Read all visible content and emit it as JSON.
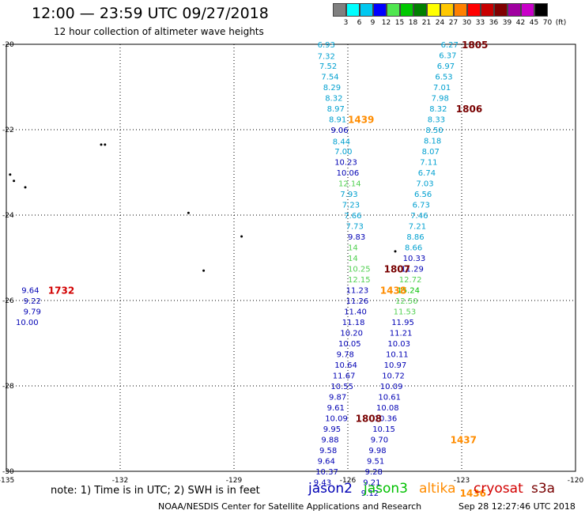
{
  "title": "12:00 — 23:59 UTC 09/27/2018",
  "subtitle": "12 hour collection of altimeter wave heights",
  "colorbar": {
    "labels": [
      "3",
      "6",
      "9",
      "12",
      "15",
      "18",
      "21",
      "24",
      "27",
      "30",
      "33",
      "36",
      "39",
      "42",
      "45",
      "70",
      "(ft)"
    ],
    "colors": [
      "#808080",
      "#00ffff",
      "#00c8f0",
      "#0000ff",
      "#50e650",
      "#00c800",
      "#008000",
      "#ffff00",
      "#ffc800",
      "#ff8000",
      "#ff0000",
      "#c80000",
      "#800000",
      "#a000a0",
      "#c800c8",
      "#000000"
    ]
  },
  "colors": {
    "jason2": "#0000b4",
    "jason3": "#00c000",
    "altika": "#ff8c00",
    "cryosat": "#d20000",
    "s3a": "#780000",
    "cyan": "#00a0d0",
    "green": "#50d050"
  },
  "axes": {
    "lat_labels": [
      "-20",
      "-22",
      "-24",
      "-26",
      "-28",
      "-30"
    ],
    "lon_labels": [
      "-135",
      "-132",
      "-129",
      "-126",
      "-123",
      "-120"
    ]
  },
  "chart_data": {
    "type": "scatter",
    "title": "12:00 — 23:59 UTC 09/27/2018",
    "xlabel": "",
    "ylabel": "",
    "xlim": [
      -135,
      -120
    ],
    "ylim": [
      -30,
      -20
    ],
    "grid": true,
    "x_ticks": [
      -135,
      -132,
      -129,
      -126,
      -123,
      -120
    ],
    "y_ticks": [
      -20,
      -22,
      -24,
      -26,
      -28,
      -30
    ],
    "series": [
      {
        "name": "jason2",
        "color": "#0000b4"
      },
      {
        "name": "jason3",
        "color": "#00c000"
      },
      {
        "name": "altika",
        "color": "#ff8c00"
      },
      {
        "name": "cryosat",
        "color": "#d20000"
      },
      {
        "name": "s3a",
        "color": "#780000"
      }
    ],
    "labels": [
      {
        "text": "6.93",
        "lon": -126.8,
        "lat": -20.0,
        "c": "cyan"
      },
      {
        "text": "7.32",
        "lon": -126.8,
        "lat": -20.27,
        "c": "cyan"
      },
      {
        "text": "7.52",
        "lon": -126.75,
        "lat": -20.5,
        "c": "cyan"
      },
      {
        "text": "7.54",
        "lon": -126.7,
        "lat": -20.75,
        "c": "cyan"
      },
      {
        "text": "8.29",
        "lon": -126.65,
        "lat": -21.0,
        "c": "cyan"
      },
      {
        "text": "8.32",
        "lon": -126.6,
        "lat": -21.25,
        "c": "cyan"
      },
      {
        "text": "8.97",
        "lon": -126.55,
        "lat": -21.5,
        "c": "cyan"
      },
      {
        "text": "8.91",
        "lon": -126.5,
        "lat": -21.75,
        "c": "cyan"
      },
      {
        "text": "9.06",
        "lon": -126.45,
        "lat": -22.0,
        "c": "jason2"
      },
      {
        "text": "8.44",
        "lon": -126.4,
        "lat": -22.27,
        "c": "cyan"
      },
      {
        "text": "7.00",
        "lon": -126.35,
        "lat": -22.5,
        "c": "cyan"
      },
      {
        "text": "10.23",
        "lon": -126.35,
        "lat": -22.75,
        "c": "jason2"
      },
      {
        "text": "10.06",
        "lon": -126.3,
        "lat": -23.0,
        "c": "jason2"
      },
      {
        "text": "12.14",
        "lon": -126.25,
        "lat": -23.25,
        "c": "green"
      },
      {
        "text": "7.93",
        "lon": -126.2,
        "lat": -23.5,
        "c": "cyan"
      },
      {
        "text": "7.23",
        "lon": -126.15,
        "lat": -23.75,
        "c": "cyan"
      },
      {
        "text": "7.66",
        "lon": -126.1,
        "lat": -24.0,
        "c": "cyan"
      },
      {
        "text": "7.73",
        "lon": -126.05,
        "lat": -24.25,
        "c": "cyan"
      },
      {
        "text": "9.83",
        "lon": -126.0,
        "lat": -24.5,
        "c": "jason2"
      },
      {
        "text": "14",
        "lon": -126.0,
        "lat": -24.75,
        "c": "green"
      },
      {
        "text": "14",
        "lon": -126.0,
        "lat": -25.0,
        "c": "green"
      },
      {
        "text": "10.25",
        "lon": -126.0,
        "lat": -25.25,
        "c": "green"
      },
      {
        "text": "12.15",
        "lon": -126.0,
        "lat": -25.5,
        "c": "green"
      },
      {
        "text": "11.23",
        "lon": -126.05,
        "lat": -25.75,
        "c": "jason2"
      },
      {
        "text": "11.26",
        "lon": -126.05,
        "lat": -26.0,
        "c": "jason2"
      },
      {
        "text": "11.40",
        "lon": -126.1,
        "lat": -26.25,
        "c": "jason2"
      },
      {
        "text": "11.18",
        "lon": -126.15,
        "lat": -26.5,
        "c": "jason2"
      },
      {
        "text": "10.20",
        "lon": -126.2,
        "lat": -26.75,
        "c": "jason2"
      },
      {
        "text": "10.05",
        "lon": -126.25,
        "lat": -27.0,
        "c": "jason2"
      },
      {
        "text": "9.78",
        "lon": -126.3,
        "lat": -27.25,
        "c": "jason2"
      },
      {
        "text": "10.64",
        "lon": -126.35,
        "lat": -27.5,
        "c": "jason2"
      },
      {
        "text": "11.67",
        "lon": -126.4,
        "lat": -27.75,
        "c": "jason2"
      },
      {
        "text": "10.55",
        "lon": -126.45,
        "lat": -28.0,
        "c": "jason2"
      },
      {
        "text": "9.87",
        "lon": -126.5,
        "lat": -28.25,
        "c": "jason2"
      },
      {
        "text": "9.61",
        "lon": -126.55,
        "lat": -28.5,
        "c": "jason2"
      },
      {
        "text": "10.09",
        "lon": -126.6,
        "lat": -28.75,
        "c": "jason2"
      },
      {
        "text": "9.95",
        "lon": -126.65,
        "lat": -29.0,
        "c": "jason2"
      },
      {
        "text": "9.88",
        "lon": -126.7,
        "lat": -29.25,
        "c": "jason2"
      },
      {
        "text": "9.58",
        "lon": -126.75,
        "lat": -29.5,
        "c": "jason2"
      },
      {
        "text": "9.64",
        "lon": -126.8,
        "lat": -29.75,
        "c": "jason2"
      },
      {
        "text": "10.37",
        "lon": -126.85,
        "lat": -30.0,
        "c": "jason2"
      },
      {
        "text": "9.43",
        "lon": -126.9,
        "lat": -30.25,
        "c": "jason2"
      },
      {
        "text": "6.27",
        "lon": -123.55,
        "lat": -20.0,
        "c": "cyan"
      },
      {
        "text": "6.37",
        "lon": -123.6,
        "lat": -20.25,
        "c": "cyan"
      },
      {
        "text": "6.97",
        "lon": -123.65,
        "lat": -20.5,
        "c": "cyan"
      },
      {
        "text": "6.53",
        "lon": -123.7,
        "lat": -20.75,
        "c": "cyan"
      },
      {
        "text": "7.01",
        "lon": -123.75,
        "lat": -21.0,
        "c": "cyan"
      },
      {
        "text": "7.98",
        "lon": -123.8,
        "lat": -21.25,
        "c": "cyan"
      },
      {
        "text": "8.32",
        "lon": -123.85,
        "lat": -21.5,
        "c": "cyan"
      },
      {
        "text": "8.33",
        "lon": -123.9,
        "lat": -21.75,
        "c": "cyan"
      },
      {
        "text": "8.50",
        "lon": -123.95,
        "lat": -22.0,
        "c": "cyan"
      },
      {
        "text": "8.18",
        "lon": -124.0,
        "lat": -22.25,
        "c": "cyan"
      },
      {
        "text": "8.07",
        "lon": -124.05,
        "lat": -22.5,
        "c": "cyan"
      },
      {
        "text": "7.11",
        "lon": -124.1,
        "lat": -22.75,
        "c": "cyan"
      },
      {
        "text": "6.74",
        "lon": -124.15,
        "lat": -23.0,
        "c": "cyan"
      },
      {
        "text": "7.03",
        "lon": -124.2,
        "lat": -23.25,
        "c": "cyan"
      },
      {
        "text": "6.56",
        "lon": -124.25,
        "lat": -23.5,
        "c": "cyan"
      },
      {
        "text": "6.73",
        "lon": -124.3,
        "lat": -23.75,
        "c": "cyan"
      },
      {
        "text": "7.46",
        "lon": -124.35,
        "lat": -24.0,
        "c": "cyan"
      },
      {
        "text": "7.21",
        "lon": -124.4,
        "lat": -24.25,
        "c": "cyan"
      },
      {
        "text": "8.86",
        "lon": -124.45,
        "lat": -24.5,
        "c": "cyan"
      },
      {
        "text": "8.66",
        "lon": -124.5,
        "lat": -24.75,
        "c": "cyan"
      },
      {
        "text": "10.33",
        "lon": -124.55,
        "lat": -25.0,
        "c": "jason2"
      },
      {
        "text": "11.29",
        "lon": -124.6,
        "lat": -25.25,
        "c": "jason2"
      },
      {
        "text": "12.72",
        "lon": -124.65,
        "lat": -25.5,
        "c": "green"
      },
      {
        "text": "15.24",
        "lon": -124.7,
        "lat": -25.75,
        "c": "jason3"
      },
      {
        "text": "12.50",
        "lon": -124.75,
        "lat": -26.0,
        "c": "green"
      },
      {
        "text": "11.53",
        "lon": -124.8,
        "lat": -26.25,
        "c": "green"
      },
      {
        "text": "11.95",
        "lon": -124.85,
        "lat": -26.5,
        "c": "jason2"
      },
      {
        "text": "11.21",
        "lon": -124.9,
        "lat": -26.75,
        "c": "jason2"
      },
      {
        "text": "10.03",
        "lon": -124.95,
        "lat": -27.0,
        "c": "jason2"
      },
      {
        "text": "10.11",
        "lon": -125.0,
        "lat": -27.25,
        "c": "jason2"
      },
      {
        "text": "10.97",
        "lon": -125.05,
        "lat": -27.5,
        "c": "jason2"
      },
      {
        "text": "10.72",
        "lon": -125.1,
        "lat": -27.75,
        "c": "jason2"
      },
      {
        "text": "10.09",
        "lon": -125.15,
        "lat": -28.0,
        "c": "jason2"
      },
      {
        "text": "10.61",
        "lon": -125.2,
        "lat": -28.25,
        "c": "jason2"
      },
      {
        "text": "10.08",
        "lon": -125.25,
        "lat": -28.5,
        "c": "jason2"
      },
      {
        "text": "10.36",
        "lon": -125.3,
        "lat": -28.75,
        "c": "jason2"
      },
      {
        "text": "10.15",
        "lon": -125.35,
        "lat": -29.0,
        "c": "jason2"
      },
      {
        "text": "9.70",
        "lon": -125.4,
        "lat": -29.25,
        "c": "jason2"
      },
      {
        "text": "9.98",
        "lon": -125.45,
        "lat": -29.5,
        "c": "jason2"
      },
      {
        "text": "9.51",
        "lon": -125.5,
        "lat": -29.75,
        "c": "jason2"
      },
      {
        "text": "9.28",
        "lon": -125.55,
        "lat": -30.0,
        "c": "jason2"
      },
      {
        "text": "9.21",
        "lon": -125.6,
        "lat": -30.25,
        "c": "jason2"
      },
      {
        "text": "9.12",
        "lon": -125.65,
        "lat": -30.5,
        "c": "jason2"
      },
      {
        "text": "9.64",
        "lon": -134.6,
        "lat": -25.75,
        "c": "jason2"
      },
      {
        "text": "9.22",
        "lon": -134.55,
        "lat": -26.0,
        "c": "jason2"
      },
      {
        "text": "9.79",
        "lon": -134.55,
        "lat": -26.25,
        "c": "jason2"
      },
      {
        "text": "10.00",
        "lon": -134.75,
        "lat": -26.5,
        "c": "jason2"
      }
    ],
    "time_labels": [
      {
        "text": "1805",
        "lon": -123.0,
        "lat": -20.0,
        "c": "s3a"
      },
      {
        "text": "1806",
        "lon": -123.15,
        "lat": -21.5,
        "c": "s3a"
      },
      {
        "text": "1439",
        "lon": -126.0,
        "lat": -21.75,
        "c": "altika"
      },
      {
        "text": "1807",
        "lon": -125.05,
        "lat": -25.25,
        "c": "s3a"
      },
      {
        "text": "1438",
        "lon": -125.15,
        "lat": -25.75,
        "c": "altika"
      },
      {
        "text": "1732",
        "lon": -133.9,
        "lat": -25.75,
        "c": "cryosat"
      },
      {
        "text": "1808",
        "lon": -125.8,
        "lat": -28.75,
        "c": "s3a"
      },
      {
        "text": "1437",
        "lon": -123.3,
        "lat": -29.25,
        "c": "altika"
      },
      {
        "text": "1436",
        "lon": -123.05,
        "lat": -30.5,
        "c": "altika"
      }
    ]
  },
  "footer": {
    "note": "note:  1) Time is in UTC;  2) SWH is in feet",
    "sats": [
      {
        "name": "jason2",
        "c": "jason2",
        "left": 390
      },
      {
        "name": "jason3",
        "c": "jason3",
        "left": 460
      },
      {
        "name": "altika",
        "c": "altika",
        "left": 530
      },
      {
        "name": "cryosat",
        "c": "cryosat",
        "left": 599
      },
      {
        "name": "s3a",
        "c": "s3a",
        "left": 672
      }
    ],
    "credit": "NOAA/NESDIS Center for Satellite Applications and Research",
    "timestamp": "Sep 28 12:27:46 UTC 2018"
  }
}
